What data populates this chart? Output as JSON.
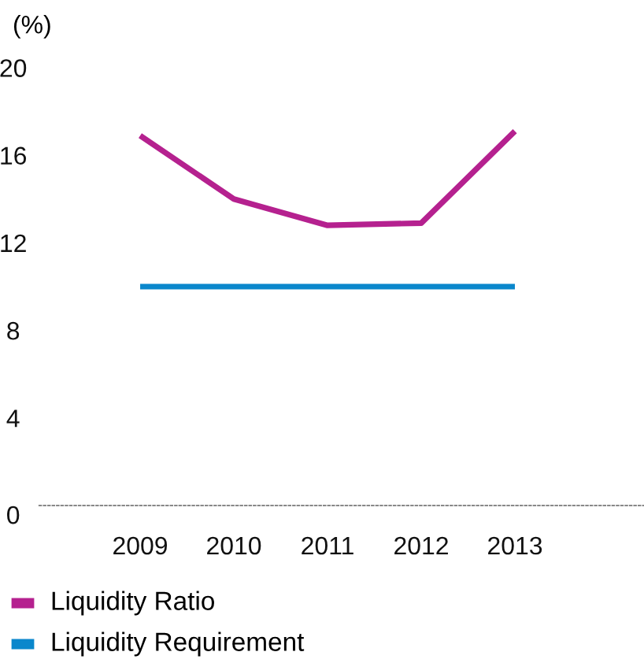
{
  "chart_data": {
    "type": "line",
    "ylabel": "(%)",
    "categories": [
      "2009",
      "2010",
      "2011",
      "2012",
      "2013"
    ],
    "series": [
      {
        "name": "Liquidity Ratio",
        "color": "#b5218f",
        "values": [
          16.9,
          14.0,
          12.8,
          12.9,
          17.1
        ]
      },
      {
        "name": "Liquidity Requirement",
        "color": "#0a87cc",
        "values": [
          10.0,
          10.0,
          10.0,
          10.0,
          10.0
        ]
      }
    ],
    "ylim": [
      0,
      20
    ],
    "yticks": [
      0,
      4,
      8,
      12,
      16,
      20
    ],
    "legend": "bottom left",
    "marker": "none",
    "line_style": "solid"
  }
}
